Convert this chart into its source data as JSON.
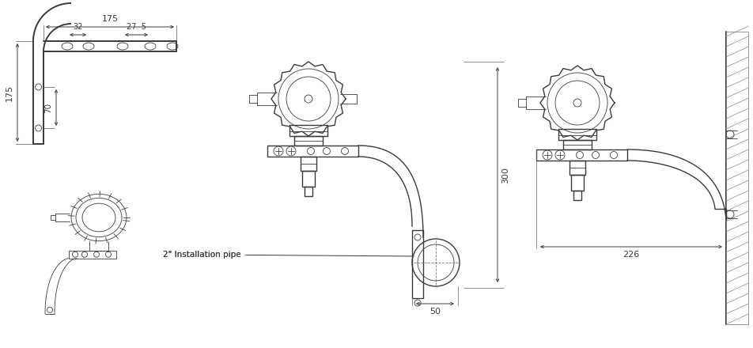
{
  "bg_color": "#ffffff",
  "line_color": "#3a3a3a",
  "dim_color": "#3a3a3a",
  "lw": 1.0,
  "lw_thin": 0.6,
  "lw_thick": 1.4,
  "annotation": "2\" Installation pipe",
  "dim_175_top": "175",
  "dim_32": "32",
  "dim_27_5": "27. 5",
  "dim_175_left": "175",
  "dim_70": "70",
  "dim_300": "300",
  "dim_50": "50",
  "dim_226": "226"
}
